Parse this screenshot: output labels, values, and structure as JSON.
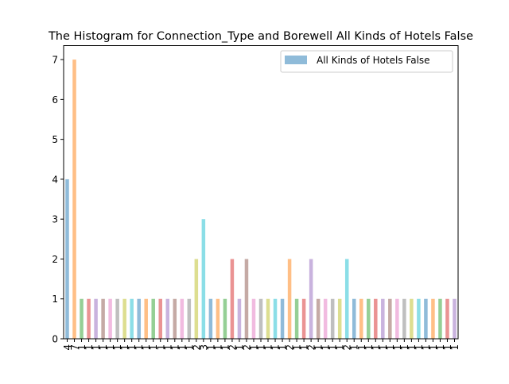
{
  "chart_data": {
    "type": "bar",
    "title": "The Histogram for Connection_Type and Borewell All Kinds of Hotels False",
    "xlabel": "",
    "ylabel": "",
    "ylim": [
      0,
      7.35
    ],
    "yticks": [
      0,
      1,
      2,
      3,
      4,
      5,
      6,
      7
    ],
    "legend": {
      "label": "All Kinds of Hotels False",
      "placement": "top-right",
      "color": "#1f77b4"
    },
    "grid": false,
    "bar_alpha": 0.5,
    "palette": [
      "#1f77b4",
      "#ff7f0e",
      "#2ca02c",
      "#d62728",
      "#9467bd",
      "#8c564b",
      "#e377c2",
      "#7f7f7f",
      "#bcbd22",
      "#17becf"
    ],
    "categories": [
      "4",
      "7",
      "1",
      "1",
      "1",
      "1",
      "1",
      "1",
      "1",
      "1",
      "1",
      "1",
      "1",
      "1",
      "1",
      "1",
      "1",
      "1",
      "2",
      "3",
      "1",
      "1",
      "1",
      "2",
      "1",
      "2",
      "1",
      "1",
      "1",
      "1",
      "1",
      "2",
      "1",
      "1",
      "2",
      "1",
      "1",
      "1",
      "1",
      "2",
      "1",
      "1",
      "1",
      "1",
      "1",
      "1",
      "1",
      "1",
      "1",
      "1",
      "1",
      "1",
      "1",
      "1",
      "1"
    ],
    "values": [
      4,
      7,
      1,
      1,
      1,
      1,
      1,
      1,
      1,
      1,
      1,
      1,
      1,
      1,
      1,
      1,
      1,
      1,
      2,
      3,
      1,
      1,
      1,
      2,
      1,
      2,
      1,
      1,
      1,
      1,
      1,
      2,
      1,
      1,
      2,
      1,
      1,
      1,
      1,
      2,
      1,
      1,
      1,
      1,
      1,
      1,
      1,
      1,
      1,
      1,
      1,
      1,
      1,
      1,
      1
    ]
  }
}
